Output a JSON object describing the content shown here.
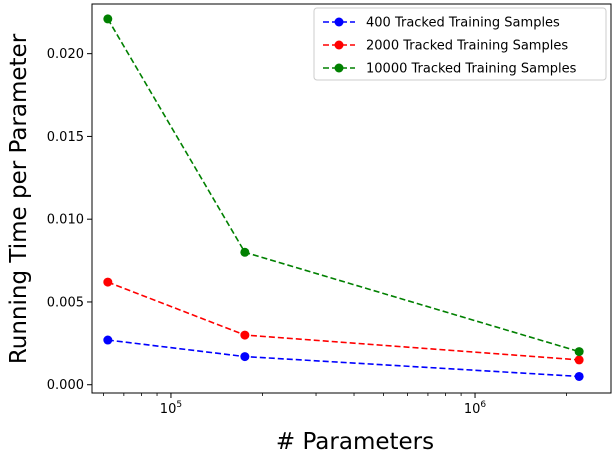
{
  "chart_data": {
    "type": "line",
    "xlabel": "# Parameters",
    "ylabel": "Running Time per Parameter",
    "xscale": "log",
    "xlim": [
      55000,
      2800000
    ],
    "ylim": [
      -0.0005,
      0.023
    ],
    "x_ticks": [
      {
        "value": 100000,
        "mantissa": "10",
        "exponent": "5"
      },
      {
        "value": 1000000,
        "mantissa": "10",
        "exponent": "6"
      }
    ],
    "y_ticks": [
      {
        "value": 0.0,
        "label": "0.000"
      },
      {
        "value": 0.005,
        "label": "0.005"
      },
      {
        "value": 0.01,
        "label": "0.010"
      },
      {
        "value": 0.015,
        "label": "0.015"
      },
      {
        "value": 0.02,
        "label": "0.020"
      }
    ],
    "grid": false,
    "legend_position": "top-right",
    "x": [
      62000,
      175000,
      2200000
    ],
    "series": [
      {
        "name": "400 Tracked Training Samples",
        "color": "#0000ff",
        "values": [
          0.0027,
          0.0017,
          0.0005
        ]
      },
      {
        "name": "2000 Tracked Training Samples",
        "color": "#ff0000",
        "values": [
          0.0062,
          0.003,
          0.0015
        ]
      },
      {
        "name": "10000 Tracked Training Samples",
        "color": "#008000",
        "values": [
          0.0221,
          0.008,
          0.002
        ]
      }
    ]
  }
}
